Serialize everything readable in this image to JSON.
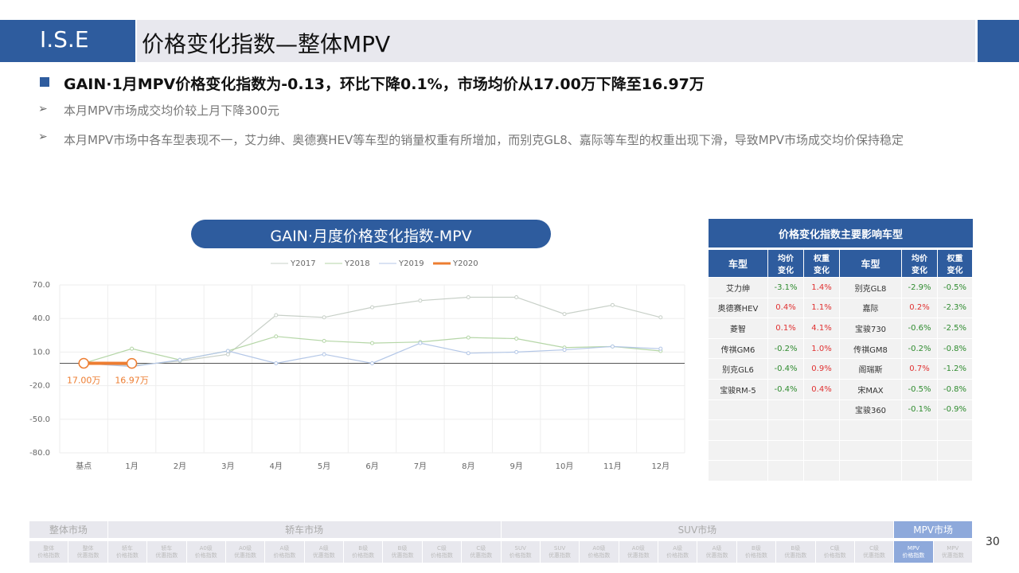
{
  "header": {
    "logo": "I.S.E",
    "title": "价格变化指数—整体MPV"
  },
  "bullets": {
    "main": "GAIN·1月MPV价格变化指数为-0.13，环比下降0.1%，市场均价从17.00万下降至16.97万",
    "items": [
      "本月MPV市场成交均价较上月下降300元",
      "本月MPV市场中各车型表现不一，艾力绅、奥德赛HEV等车型的销量权重有所增加，而别克GL8、嘉际等车型的权重出现下滑，导致MPV市场成交均价保持稳定"
    ]
  },
  "chart_data": {
    "type": "line",
    "title": "GAIN·月度价格变化指数-MPV",
    "categories": [
      "基点",
      "1月",
      "2月",
      "3月",
      "4月",
      "5月",
      "6月",
      "7月",
      "8月",
      "9月",
      "10月",
      "11月",
      "12月"
    ],
    "series": [
      {
        "name": "Y2017",
        "color": "#c8d0c8",
        "values": [
          0,
          -2,
          2,
          8,
          43,
          41,
          50,
          56,
          59,
          59,
          44,
          52,
          41
        ]
      },
      {
        "name": "Y2018",
        "color": "#b5d6a7",
        "values": [
          0,
          13,
          3,
          11,
          24,
          20,
          18,
          19,
          23,
          22,
          14,
          15,
          11
        ]
      },
      {
        "name": "Y2019",
        "color": "#b4c7e7",
        "values": [
          0,
          -3,
          3,
          11,
          0,
          8,
          0,
          18,
          9,
          10,
          12,
          15,
          13
        ]
      },
      {
        "name": "Y2020",
        "color": "#ed7d31",
        "values": [
          0,
          -0.13,
          null,
          null,
          null,
          null,
          null,
          null,
          null,
          null,
          null,
          null,
          null
        ]
      }
    ],
    "annotations": [
      "17.00万",
      "16.97万"
    ],
    "ylim": [
      -80,
      70
    ],
    "yticks": [
      {
        "value": 70,
        "label": "70.0"
      },
      {
        "value": 40,
        "label": "40.0"
      },
      {
        "value": 10,
        "label": "10.0"
      },
      {
        "value": -20,
        "label": "-20.0"
      },
      {
        "value": -50,
        "label": "-50.0"
      },
      {
        "value": -80,
        "label": "-80.0"
      }
    ],
    "grid": true,
    "legend": "top"
  },
  "table": {
    "title": "价格变化指数主要影响车型",
    "headers": [
      "车型",
      "均价变化",
      "权重变化",
      "车型",
      "均价变化",
      "权重变化"
    ],
    "rows": [
      [
        "艾力绅",
        "-3.1%",
        "1.4%",
        "别克GL8",
        "-2.9%",
        "-0.5%"
      ],
      [
        "奥德赛HEV",
        "0.4%",
        "1.1%",
        "嘉际",
        "0.2%",
        "-2.3%"
      ],
      [
        "菱智",
        "0.1%",
        "4.1%",
        "宝骏730",
        "-0.6%",
        "-2.5%"
      ],
      [
        "传祺GM6",
        "-0.2%",
        "1.0%",
        "传祺GM8",
        "-0.2%",
        "-0.8%"
      ],
      [
        "别克GL6",
        "-0.4%",
        "0.9%",
        "阁瑞斯",
        "0.7%",
        "-1.2%"
      ],
      [
        "宝骏RM-5",
        "-0.4%",
        "0.4%",
        "宋MAX",
        "-0.5%",
        "-0.8%"
      ],
      [
        "",
        "",
        "",
        "宝骏360",
        "-0.1%",
        "-0.9%"
      ]
    ]
  },
  "nav": {
    "groups": [
      "整体市场",
      "轿车市场",
      "SUV市场",
      "MPV市场"
    ],
    "cells": [
      {
        "top": "整体",
        "bottom": "价格指数"
      },
      {
        "top": "整体",
        "bottom": "优惠指数"
      },
      {
        "top": "轿车",
        "bottom": "价格指数"
      },
      {
        "top": "轿车",
        "bottom": "优惠指数"
      },
      {
        "top": "A0级",
        "bottom": "价格指数"
      },
      {
        "top": "A0级",
        "bottom": "优惠指数"
      },
      {
        "top": "A级",
        "bottom": "价格指数"
      },
      {
        "top": "A级",
        "bottom": "优惠指数"
      },
      {
        "top": "B级",
        "bottom": "价格指数"
      },
      {
        "top": "B级",
        "bottom": "优惠指数"
      },
      {
        "top": "C级",
        "bottom": "价格指数"
      },
      {
        "top": "C级",
        "bottom": "优惠指数"
      },
      {
        "top": "SUV",
        "bottom": "价格指数"
      },
      {
        "top": "SUV",
        "bottom": "优惠指数"
      },
      {
        "top": "A0级",
        "bottom": "价格指数"
      },
      {
        "top": "A0级",
        "bottom": "优惠指数"
      },
      {
        "top": "A级",
        "bottom": "价格指数"
      },
      {
        "top": "A级",
        "bottom": "优惠指数"
      },
      {
        "top": "B级",
        "bottom": "价格指数"
      },
      {
        "top": "B级",
        "bottom": "优惠指数"
      },
      {
        "top": "C级",
        "bottom": "价格指数"
      },
      {
        "top": "C级",
        "bottom": "优惠指数"
      },
      {
        "top": "MPV",
        "bottom": "价格指数"
      },
      {
        "top": "MPV",
        "bottom": "优惠指数"
      }
    ]
  },
  "page_number": "30"
}
